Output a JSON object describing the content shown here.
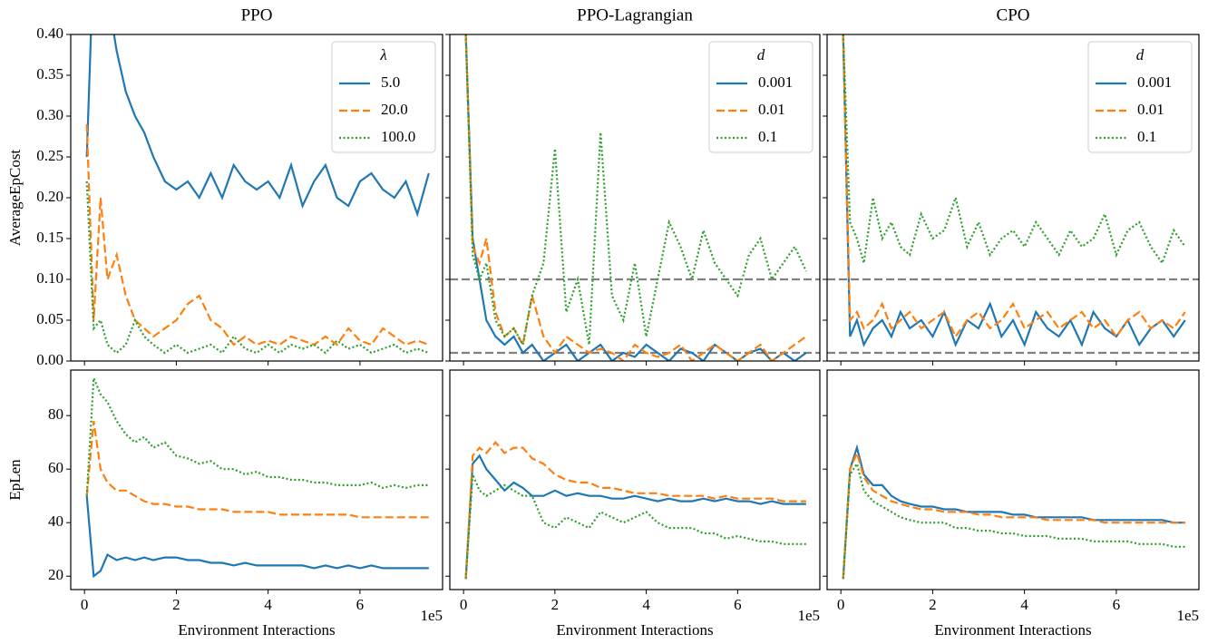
{
  "chart_data": [
    {
      "type": "line",
      "title": "PPO",
      "ylabel": "AverageEpCost",
      "legend_title": "λ",
      "legend": "upper right",
      "x": [
        0.05,
        0.2,
        0.35,
        0.5,
        0.7,
        0.9,
        1.1,
        1.3,
        1.5,
        1.75,
        2.0,
        2.25,
        2.5,
        2.75,
        3.0,
        3.25,
        3.5,
        3.75,
        4.0,
        4.25,
        4.5,
        4.75,
        5.0,
        5.25,
        5.5,
        5.75,
        6.0,
        6.25,
        6.5,
        6.75,
        7.0,
        7.25,
        7.5
      ],
      "xlim": [
        -0.3,
        7.8
      ],
      "xticks": [
        0,
        2,
        4,
        6
      ],
      "ylim": [
        0,
        0.4
      ],
      "yticks": [
        {
          "value": 0,
          "label": "0.00"
        },
        {
          "value": 0.05,
          "label": "0.05"
        },
        {
          "value": 0.1,
          "label": "0.10"
        },
        {
          "value": 0.15,
          "label": "0.15"
        },
        {
          "value": 0.2,
          "label": "0.20"
        },
        {
          "value": 0.25,
          "label": "0.25"
        },
        {
          "value": 0.3,
          "label": "0.30"
        },
        {
          "value": 0.35,
          "label": "0.35"
        },
        {
          "value": 0.4,
          "label": "0.40"
        }
      ],
      "series": [
        {
          "name": "5.0",
          "color": "#1f77b4",
          "style": "solid",
          "values": [
            0.25,
            0.5,
            0.42,
            0.45,
            0.38,
            0.33,
            0.3,
            0.28,
            0.25,
            0.22,
            0.21,
            0.22,
            0.2,
            0.23,
            0.2,
            0.24,
            0.22,
            0.21,
            0.22,
            0.2,
            0.24,
            0.19,
            0.22,
            0.24,
            0.2,
            0.19,
            0.22,
            0.23,
            0.21,
            0.2,
            0.22,
            0.18,
            0.23
          ]
        },
        {
          "name": "20.0",
          "color": "#ff7f0e",
          "style": "dashed",
          "values": [
            0.29,
            0.05,
            0.2,
            0.1,
            0.13,
            0.08,
            0.05,
            0.04,
            0.03,
            0.04,
            0.05,
            0.07,
            0.08,
            0.05,
            0.04,
            0.02,
            0.03,
            0.02,
            0.025,
            0.02,
            0.03,
            0.025,
            0.02,
            0.03,
            0.02,
            0.04,
            0.025,
            0.02,
            0.04,
            0.03,
            0.02,
            0.025,
            0.02
          ]
        },
        {
          "name": "100.0",
          "color": "#2ca02c",
          "style": "dotted",
          "values": [
            0.22,
            0.04,
            0.05,
            0.02,
            0.01,
            0.02,
            0.05,
            0.03,
            0.02,
            0.01,
            0.02,
            0.01,
            0.015,
            0.02,
            0.01,
            0.03,
            0.015,
            0.01,
            0.02,
            0.01,
            0.02,
            0.015,
            0.02,
            0.01,
            0.025,
            0.015,
            0.02,
            0.01,
            0.015,
            0.02,
            0.01,
            0.015,
            0.01
          ]
        }
      ]
    },
    {
      "type": "line",
      "title": "PPO-Lagrangian",
      "legend_title": "d",
      "legend": "upper right",
      "thresholds": [
        0.1,
        0.01
      ],
      "x": [
        0.05,
        0.2,
        0.35,
        0.5,
        0.7,
        0.9,
        1.1,
        1.3,
        1.5,
        1.75,
        2.0,
        2.25,
        2.5,
        2.75,
        3.0,
        3.25,
        3.5,
        3.75,
        4.0,
        4.25,
        4.5,
        4.75,
        5.0,
        5.25,
        5.5,
        5.75,
        6.0,
        6.25,
        6.5,
        6.75,
        7.0,
        7.25,
        7.5
      ],
      "xlim": [
        -0.3,
        7.8
      ],
      "xticks": [
        0,
        2,
        4,
        6
      ],
      "ylim": [
        0,
        0.4
      ],
      "yticks": [
        0,
        0.05,
        0.1,
        0.15,
        0.2,
        0.25,
        0.3,
        0.35,
        0.4
      ],
      "series": [
        {
          "name": "0.001",
          "color": "#1f77b4",
          "style": "solid",
          "values": [
            0.4,
            0.15,
            0.1,
            0.05,
            0.03,
            0.02,
            0.03,
            0.01,
            0.02,
            0.0,
            0.01,
            0.02,
            0.0,
            0.01,
            0.02,
            0.0,
            0.01,
            0.005,
            0.02,
            0.01,
            0.0,
            0.015,
            0.01,
            0.0,
            0.02,
            0.01,
            0.0,
            0.01,
            0.015,
            0.0,
            0.01,
            0.0,
            0.01
          ]
        },
        {
          "name": "0.01",
          "color": "#ff7f0e",
          "style": "dashed",
          "values": [
            0.4,
            0.14,
            0.12,
            0.15,
            0.06,
            0.03,
            0.04,
            0.02,
            0.08,
            0.03,
            0.01,
            0.03,
            0.02,
            0.01,
            0.015,
            0.01,
            0.0,
            0.02,
            0.01,
            0.005,
            0.01,
            0.02,
            0.0,
            0.01,
            0.02,
            0.01,
            0.0,
            0.01,
            0.02,
            0.0,
            0.01,
            0.02,
            0.03
          ]
        },
        {
          "name": "0.1",
          "color": "#2ca02c",
          "style": "dotted",
          "values": [
            0.4,
            0.13,
            0.1,
            0.12,
            0.05,
            0.03,
            0.04,
            0.02,
            0.08,
            0.12,
            0.26,
            0.06,
            0.1,
            0.02,
            0.28,
            0.08,
            0.05,
            0.12,
            0.03,
            0.1,
            0.17,
            0.14,
            0.1,
            0.16,
            0.12,
            0.1,
            0.08,
            0.13,
            0.15,
            0.1,
            0.12,
            0.14,
            0.11
          ]
        }
      ]
    },
    {
      "type": "line",
      "title": "CPO",
      "legend_title": "d",
      "legend": "upper right",
      "thresholds": [
        0.1,
        0.01
      ],
      "x": [
        0.05,
        0.2,
        0.35,
        0.5,
        0.7,
        0.9,
        1.1,
        1.3,
        1.5,
        1.75,
        2.0,
        2.25,
        2.5,
        2.75,
        3.0,
        3.25,
        3.5,
        3.75,
        4.0,
        4.25,
        4.5,
        4.75,
        5.0,
        5.25,
        5.5,
        5.75,
        6.0,
        6.25,
        6.5,
        6.75,
        7.0,
        7.25,
        7.5
      ],
      "xlim": [
        -0.3,
        7.8
      ],
      "xticks": [
        0,
        2,
        4,
        6
      ],
      "ylim": [
        0,
        0.4
      ],
      "yticks": [
        0,
        0.05,
        0.1,
        0.15,
        0.2,
        0.25,
        0.3,
        0.35,
        0.4
      ],
      "series": [
        {
          "name": "0.001",
          "color": "#1f77b4",
          "style": "solid",
          "values": [
            0.4,
            0.03,
            0.05,
            0.02,
            0.04,
            0.05,
            0.03,
            0.06,
            0.04,
            0.05,
            0.03,
            0.06,
            0.02,
            0.05,
            0.04,
            0.07,
            0.03,
            0.05,
            0.02,
            0.06,
            0.04,
            0.03,
            0.05,
            0.02,
            0.06,
            0.04,
            0.03,
            0.05,
            0.02,
            0.04,
            0.05,
            0.03,
            0.05
          ]
        },
        {
          "name": "0.01",
          "color": "#ff7f0e",
          "style": "dashed",
          "values": [
            0.4,
            0.05,
            0.06,
            0.04,
            0.05,
            0.07,
            0.04,
            0.05,
            0.06,
            0.04,
            0.05,
            0.06,
            0.03,
            0.05,
            0.06,
            0.04,
            0.05,
            0.07,
            0.04,
            0.05,
            0.06,
            0.04,
            0.05,
            0.06,
            0.04,
            0.05,
            0.03,
            0.05,
            0.06,
            0.04,
            0.05,
            0.04,
            0.06
          ]
        },
        {
          "name": "0.1",
          "color": "#2ca02c",
          "style": "dotted",
          "values": [
            0.4,
            0.17,
            0.15,
            0.12,
            0.2,
            0.15,
            0.17,
            0.14,
            0.13,
            0.18,
            0.15,
            0.16,
            0.2,
            0.14,
            0.17,
            0.13,
            0.15,
            0.16,
            0.14,
            0.17,
            0.15,
            0.13,
            0.16,
            0.14,
            0.15,
            0.18,
            0.13,
            0.16,
            0.17,
            0.14,
            0.12,
            0.16,
            0.14
          ]
        }
      ]
    },
    {
      "type": "line",
      "ylabel": "EpLen",
      "xlabel": "Environment Interactions",
      "x_offset": "1e5",
      "x": [
        0.05,
        0.2,
        0.35,
        0.5,
        0.7,
        0.9,
        1.1,
        1.3,
        1.5,
        1.75,
        2.0,
        2.25,
        2.5,
        2.75,
        3.0,
        3.25,
        3.5,
        3.75,
        4.0,
        4.25,
        4.5,
        4.75,
        5.0,
        5.25,
        5.5,
        5.75,
        6.0,
        6.25,
        6.5,
        6.75,
        7.0,
        7.25,
        7.5
      ],
      "xlim": [
        -0.3,
        7.8
      ],
      "xticks": [
        0,
        2,
        4,
        6
      ],
      "ylim": [
        15,
        97
      ],
      "yticks": [
        20,
        40,
        60,
        80
      ],
      "series": [
        {
          "color": "#1f77b4",
          "style": "solid",
          "values": [
            50,
            20,
            22,
            28,
            26,
            27,
            26,
            27,
            26,
            27,
            27,
            26,
            26,
            25,
            25,
            24,
            25,
            24,
            24,
            24,
            24,
            24,
            23,
            24,
            23,
            24,
            23,
            24,
            23,
            23,
            23,
            23,
            23
          ]
        },
        {
          "color": "#ff7f0e",
          "style": "dashed",
          "values": [
            50,
            78,
            60,
            55,
            52,
            52,
            50,
            48,
            47,
            47,
            46,
            46,
            45,
            45,
            45,
            44,
            44,
            44,
            44,
            43,
            43,
            43,
            43,
            43,
            43,
            43,
            42,
            42,
            42,
            42,
            42,
            42,
            42
          ]
        },
        {
          "color": "#2ca02c",
          "style": "dotted",
          "values": [
            50,
            94,
            88,
            85,
            78,
            73,
            70,
            72,
            68,
            70,
            65,
            64,
            62,
            63,
            60,
            60,
            58,
            59,
            57,
            57,
            56,
            56,
            55,
            55,
            54,
            54,
            54,
            55,
            53,
            54,
            53,
            54,
            54
          ]
        }
      ]
    },
    {
      "type": "line",
      "xlabel": "Environment Interactions",
      "x_offset": "1e5",
      "x": [
        0.05,
        0.2,
        0.35,
        0.5,
        0.7,
        0.9,
        1.1,
        1.3,
        1.5,
        1.75,
        2.0,
        2.25,
        2.5,
        2.75,
        3.0,
        3.25,
        3.5,
        3.75,
        4.0,
        4.25,
        4.5,
        4.75,
        5.0,
        5.25,
        5.5,
        5.75,
        6.0,
        6.25,
        6.5,
        6.75,
        7.0,
        7.25,
        7.5
      ],
      "xlim": [
        -0.3,
        7.8
      ],
      "xticks": [
        0,
        2,
        4,
        6
      ],
      "ylim": [
        15,
        97
      ],
      "yticks": [
        20,
        40,
        60,
        80
      ],
      "series": [
        {
          "color": "#1f77b4",
          "style": "solid",
          "values": [
            19,
            62,
            65,
            60,
            56,
            52,
            55,
            53,
            50,
            50,
            52,
            50,
            51,
            50,
            50,
            49,
            49,
            50,
            49,
            48,
            49,
            48,
            48,
            49,
            48,
            49,
            48,
            48,
            47,
            48,
            47,
            47,
            47
          ]
        },
        {
          "color": "#ff7f0e",
          "style": "dashed",
          "values": [
            19,
            65,
            68,
            66,
            70,
            66,
            68,
            68,
            64,
            62,
            58,
            56,
            55,
            55,
            53,
            53,
            52,
            51,
            51,
            51,
            50,
            50,
            50,
            50,
            49,
            50,
            49,
            49,
            49,
            49,
            48,
            48,
            48
          ]
        },
        {
          "color": "#2ca02c",
          "style": "dotted",
          "values": [
            19,
            58,
            52,
            50,
            52,
            54,
            52,
            50,
            50,
            40,
            38,
            42,
            40,
            38,
            44,
            42,
            40,
            42,
            44,
            40,
            38,
            38,
            38,
            36,
            36,
            34,
            35,
            34,
            33,
            33,
            32,
            32,
            32
          ]
        }
      ]
    },
    {
      "type": "line",
      "xlabel": "Environment Interactions",
      "x_offset": "1e5",
      "x": [
        0.05,
        0.2,
        0.35,
        0.5,
        0.7,
        0.9,
        1.1,
        1.3,
        1.5,
        1.75,
        2.0,
        2.25,
        2.5,
        2.75,
        3.0,
        3.25,
        3.5,
        3.75,
        4.0,
        4.25,
        4.5,
        4.75,
        5.0,
        5.25,
        5.5,
        5.75,
        6.0,
        6.25,
        6.5,
        6.75,
        7.0,
        7.25,
        7.5
      ],
      "xlim": [
        -0.3,
        7.8
      ],
      "xticks": [
        0,
        2,
        4,
        6
      ],
      "ylim": [
        15,
        97
      ],
      "yticks": [
        20,
        40,
        60,
        80
      ],
      "series": [
        {
          "color": "#1f77b4",
          "style": "solid",
          "values": [
            19,
            60,
            68,
            58,
            54,
            54,
            50,
            48,
            47,
            46,
            46,
            45,
            45,
            44,
            44,
            44,
            44,
            43,
            43,
            42,
            42,
            42,
            42,
            42,
            41,
            41,
            41,
            41,
            41,
            41,
            41,
            40,
            40
          ]
        },
        {
          "color": "#ff7f0e",
          "style": "dashed",
          "values": [
            19,
            60,
            66,
            57,
            52,
            50,
            48,
            47,
            46,
            45,
            45,
            44,
            44,
            44,
            43,
            43,
            42,
            42,
            42,
            42,
            41,
            41,
            41,
            41,
            41,
            40,
            40,
            40,
            40,
            40,
            40,
            40,
            40
          ]
        },
        {
          "color": "#2ca02c",
          "style": "dotted",
          "values": [
            19,
            58,
            62,
            52,
            48,
            46,
            44,
            42,
            41,
            40,
            40,
            40,
            38,
            38,
            37,
            37,
            36,
            36,
            35,
            35,
            35,
            34,
            34,
            34,
            33,
            33,
            33,
            33,
            32,
            32,
            32,
            31,
            31
          ]
        }
      ]
    }
  ]
}
